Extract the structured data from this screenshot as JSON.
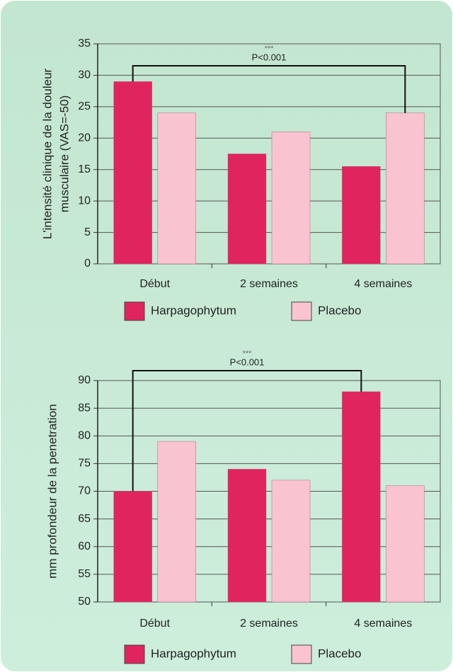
{
  "chart_data": [
    {
      "type": "bar",
      "y_label": [
        "L'intensité clinique de la douleur",
        "musculaire (VAS=-50)"
      ],
      "categories": [
        "Début",
        "2 semaines",
        "4 semaines"
      ],
      "series": [
        {
          "name": "Harpagophytum",
          "color": "#e0245e",
          "values": [
            29,
            17.5,
            15.5
          ]
        },
        {
          "name": "Placebo",
          "color": "#f9c4d0",
          "values": [
            24,
            21,
            24
          ]
        }
      ],
      "ylim": [
        0,
        35
      ],
      "yticks": [
        0,
        5,
        10,
        15,
        20,
        25,
        30,
        35
      ],
      "grid": true,
      "legend": "bottom",
      "annotation": {
        "stars": "***",
        "label": "P<0.001"
      }
    },
    {
      "type": "bar",
      "y_label": [
        "mm profondeur de la penetration"
      ],
      "categories": [
        "Début",
        "2 semaines",
        "4 semaines"
      ],
      "series": [
        {
          "name": "Harpagophytum",
          "color": "#e0245e",
          "values": [
            70,
            74,
            88
          ]
        },
        {
          "name": "Placebo",
          "color": "#f9c4d0",
          "values": [
            79,
            72,
            71
          ]
        }
      ],
      "ylim": [
        50,
        90
      ],
      "yticks": [
        50,
        55,
        60,
        65,
        70,
        75,
        80,
        85,
        90
      ],
      "grid": true,
      "legend": "bottom",
      "annotation": {
        "stars": "***",
        "label": "P<0.001"
      }
    }
  ]
}
